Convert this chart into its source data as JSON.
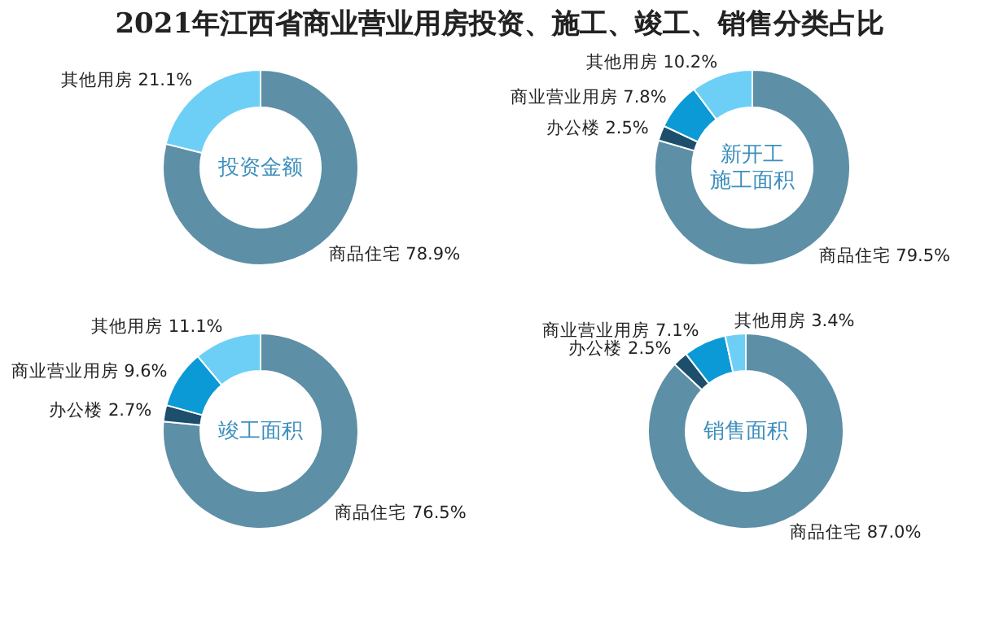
{
  "chart_data": [
    {
      "type": "donut",
      "title": "2021年江西省商业营业用房投资、施工、竣工、销售分类占比",
      "annotations": [
        "投资金额"
      ],
      "categories": [
        "商品住宅",
        "其他用房"
      ],
      "values": [
        78.9,
        21.1
      ],
      "value_labels": [
        "78.9%",
        "21.1%"
      ],
      "colors": [
        "#5d8fa6",
        "#6dcff6"
      ],
      "legend": false
    },
    {
      "type": "donut",
      "annotations": [
        "新开工",
        "施工面积"
      ],
      "categories": [
        "商品住宅",
        "办公楼",
        "商业营业用房",
        "其他用房"
      ],
      "values": [
        79.5,
        2.5,
        7.8,
        10.2
      ],
      "value_labels": [
        "79.5%",
        "2.5%",
        "7.8%",
        "10.2%"
      ],
      "colors": [
        "#5d8fa6",
        "#1d4e6b",
        "#0b9ad6",
        "#6dcff6"
      ],
      "legend": false
    },
    {
      "type": "donut",
      "annotations": [
        "竣工面积"
      ],
      "categories": [
        "商品住宅",
        "办公楼",
        "商业营业用房",
        "其他用房"
      ],
      "values": [
        76.5,
        2.7,
        9.6,
        11.1
      ],
      "value_labels": [
        "76.5%",
        "2.7%",
        "9.6%",
        "11.1%"
      ],
      "colors": [
        "#5d8fa6",
        "#1d4e6b",
        "#0b9ad6",
        "#6dcff6"
      ],
      "legend": false
    },
    {
      "type": "donut",
      "annotations": [
        "销售面积"
      ],
      "categories": [
        "商品住宅",
        "办公楼",
        "商业营业用房",
        "其他用房"
      ],
      "values": [
        87.0,
        2.5,
        7.1,
        3.4
      ],
      "value_labels": [
        "87.0%",
        "2.5%",
        "7.1%",
        "3.4%"
      ],
      "colors": [
        "#5d8fa6",
        "#1d4e6b",
        "#0b9ad6",
        "#6dcff6"
      ],
      "legend": false
    }
  ]
}
